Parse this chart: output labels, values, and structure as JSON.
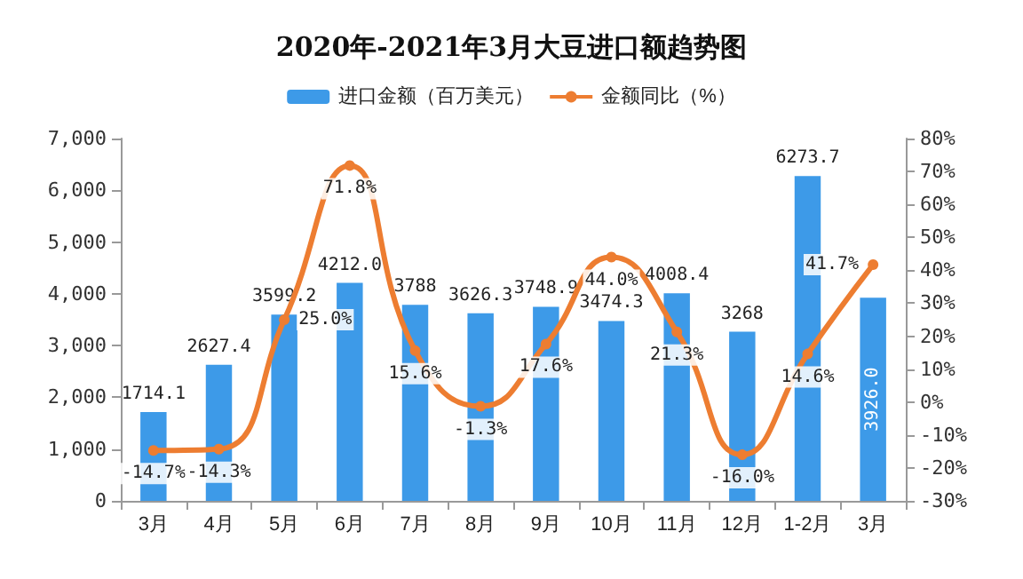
{
  "chart_data": {
    "type": "bar",
    "title": "2020年-2021年3月大豆进口额趋势图",
    "categories": [
      "3月",
      "4月",
      "5月",
      "6月",
      "7月",
      "8月",
      "9月",
      "10月",
      "11月",
      "12月",
      "1-2月",
      "3月"
    ],
    "series": [
      {
        "name": "进口金额（百万美元）",
        "color": "#3d9ae8",
        "values": [
          1714.1,
          2627.4,
          3599.2,
          4212.0,
          3788,
          3626.3,
          3748.9,
          3474.3,
          4008.4,
          3268,
          6273.7,
          3926.0
        ],
        "value_labels": [
          "1714.1",
          "2627.4",
          "3599.2",
          "4212.0",
          "3788",
          "3626.3",
          "3748.9",
          "3474.3",
          "4008.4",
          "3268",
          "6273.7",
          "3926.0"
        ]
      },
      {
        "name": "金额同比（%）",
        "type": "line",
        "axis": "y2",
        "color": "#ed7d31",
        "values": [
          -14.7,
          -14.3,
          25.0,
          71.8,
          15.6,
          -1.3,
          17.6,
          44.0,
          21.3,
          -16.0,
          14.6,
          41.7
        ],
        "value_labels": [
          "-14.7%",
          "-14.3%",
          "25.0%",
          "71.8%",
          "15.6%",
          "-1.3%",
          "17.6%",
          "44.0%",
          "21.3%",
          "-16.0%",
          "14.6%",
          "41.7%"
        ]
      }
    ],
    "ylim": [
      0,
      7000
    ],
    "yticks": [
      0,
      {
        "value": 1000,
        "label": "1,000"
      },
      {
        "value": 2000,
        "label": "2,000"
      },
      {
        "value": 3000,
        "label": "3,000"
      },
      {
        "value": 4000,
        "label": "4,000"
      },
      {
        "value": 5000,
        "label": "5,000"
      },
      {
        "value": 6000,
        "label": "6,000"
      },
      {
        "value": 7000,
        "label": "7,000"
      }
    ],
    "y2lim": [
      -30,
      80
    ],
    "y2ticks": [
      {
        "value": -30,
        "label": "-30%"
      },
      {
        "value": -20,
        "label": "-20%"
      },
      {
        "value": -10,
        "label": "-10%"
      },
      {
        "value": 0,
        "label": "0%"
      },
      {
        "value": 10,
        "label": "10%"
      },
      {
        "value": 20,
        "label": "20%"
      },
      {
        "value": 30,
        "label": "30%"
      },
      {
        "value": 40,
        "label": "40%"
      },
      {
        "value": 50,
        "label": "50%"
      },
      {
        "value": 60,
        "label": "60%"
      },
      {
        "value": 70,
        "label": "70%"
      },
      {
        "value": 80,
        "label": "80%"
      }
    ],
    "legend": "top",
    "grid": false,
    "marker": "circle"
  }
}
